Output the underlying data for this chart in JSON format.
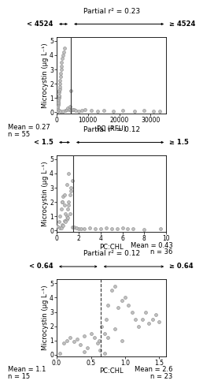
{
  "panel1": {
    "title": "Partial r² = 0.23",
    "xlabel": "PC (RFU)",
    "ylabel": "Microcystin (μg L⁻¹)",
    "xlim": [
      0,
      35000
    ],
    "ylim": [
      -0.1,
      5.3
    ],
    "xticks": [
      0,
      10000,
      20000,
      30000
    ],
    "xticklabels": [
      "0",
      "10000",
      "20000",
      "30000"
    ],
    "yticks": [
      0,
      1,
      2,
      3,
      4,
      5
    ],
    "cutoff": 4524,
    "cutoff_label_left": "< 4524",
    "cutoff_label_right": "≥ 4524",
    "mean_left": "Mean = 0.27",
    "n_left": "n = 55",
    "mean_right": null,
    "n_right": null,
    "line_style": "solid",
    "scatter_x": [
      100,
      150,
      200,
      250,
      300,
      350,
      400,
      450,
      500,
      550,
      600,
      650,
      700,
      750,
      800,
      850,
      900,
      950,
      1000,
      1100,
      1200,
      1300,
      1400,
      1500,
      1600,
      1800,
      2000,
      2200,
      2500,
      2800,
      3200,
      3600,
      4000,
      4200,
      4400,
      4524,
      5000,
      5500,
      6000,
      7000,
      8000,
      9000,
      11000,
      13000,
      15000,
      18000,
      21000,
      25000,
      28000,
      31000,
      33000,
      350,
      700,
      1200,
      2000
    ],
    "scatter_y": [
      0.05,
      0.1,
      0.15,
      0.2,
      0.3,
      0.4,
      0.5,
      0.6,
      0.7,
      0.8,
      0.9,
      1.0,
      1.1,
      1.2,
      1.4,
      1.5,
      1.6,
      1.8,
      2.0,
      2.2,
      2.5,
      2.7,
      3.0,
      3.2,
      3.5,
      3.8,
      4.0,
      4.2,
      4.5,
      0.1,
      0.2,
      0.3,
      0.2,
      0.4,
      1.5,
      0.1,
      0.15,
      0.2,
      0.1,
      0.05,
      0.1,
      0.2,
      0.1,
      0.05,
      0.1,
      0.05,
      0.1,
      0.05,
      0.1,
      0.05,
      0.05,
      0.05,
      0.1,
      0.05,
      0.05
    ]
  },
  "panel2": {
    "title": "Partial r² = 0.12",
    "xlabel": "PC:CHL",
    "ylabel": "Microcystin (μg L⁻¹)",
    "xlim": [
      0,
      10
    ],
    "ylim": [
      -0.1,
      5.3
    ],
    "xticks": [
      0,
      2,
      4,
      6,
      8,
      10
    ],
    "xticklabels": [
      "0",
      "2",
      "4",
      "6",
      "8",
      "10"
    ],
    "yticks": [
      0,
      1,
      2,
      3,
      4,
      5
    ],
    "cutoff": 1.5,
    "cutoff_label_left": "< 1.5",
    "cutoff_label_right": "≥ 1.5",
    "mean_left": null,
    "n_left": null,
    "mean_right": "Mean = 0.43",
    "n_right": "n = 36",
    "line_style": "solid",
    "scatter_x": [
      0.1,
      0.2,
      0.3,
      0.4,
      0.5,
      0.6,
      0.7,
      0.8,
      0.9,
      1.0,
      1.1,
      1.2,
      1.3,
      1.4,
      0.3,
      0.5,
      0.7,
      0.9,
      1.1,
      1.3,
      0.4,
      0.6,
      0.8,
      1.0,
      1.2,
      1.4,
      0.5,
      0.7,
      0.9,
      1.1,
      2.0,
      3.0,
      4.0,
      5.0,
      6.0,
      7.0,
      8.0,
      9.5,
      2.5,
      3.5,
      4.5,
      5.5,
      6.5,
      1.6,
      1.8,
      2.2
    ],
    "scatter_y": [
      0.3,
      0.6,
      1.0,
      1.5,
      2.0,
      2.4,
      1.8,
      1.2,
      0.8,
      1.5,
      2.0,
      2.5,
      3.0,
      3.5,
      0.2,
      0.4,
      0.7,
      1.0,
      1.8,
      2.8,
      0.15,
      0.35,
      0.6,
      0.9,
      1.2,
      0.25,
      2.0,
      2.5,
      3.2,
      4.0,
      0.1,
      0.15,
      0.1,
      0.1,
      0.15,
      0.1,
      0.05,
      0.1,
      0.1,
      0.1,
      0.15,
      0.1,
      0.1,
      0.25,
      0.2,
      0.1
    ]
  },
  "panel3": {
    "title": "Partial r² = 0.12",
    "xlabel": "PC:CHL",
    "ylabel": "Microcystin (μg L⁻¹)",
    "xlim": [
      0,
      1.6
    ],
    "ylim": [
      -0.1,
      5.3
    ],
    "xticks": [
      0.0,
      0.5,
      1.0,
      1.5
    ],
    "xticklabels": [
      "0.0",
      "0.5",
      "1.0",
      "1.5"
    ],
    "yticks": [
      0,
      1,
      2,
      3,
      4,
      5
    ],
    "cutoff": 0.64,
    "cutoff_label_left": "< 0.64",
    "cutoff_label_right": "≥ 0.64",
    "mean_left": "Mean = 1.1",
    "n_left": "n = 15",
    "mean_right": "Mean = 2.6",
    "n_right": "n = 23",
    "line_style": "dashed",
    "scatter_x": [
      0.05,
      0.1,
      0.15,
      0.2,
      0.25,
      0.3,
      0.35,
      0.4,
      0.45,
      0.5,
      0.55,
      0.6,
      0.62,
      0.63,
      0.4,
      0.7,
      0.72,
      0.75,
      0.8,
      0.85,
      0.9,
      0.95,
      1.0,
      1.05,
      1.1,
      1.15,
      1.2,
      1.25,
      1.3,
      1.35,
      1.4,
      1.45,
      1.5,
      0.65,
      0.7,
      0.75,
      0.85,
      0.95
    ],
    "scatter_y": [
      0.1,
      0.8,
      1.0,
      1.2,
      0.9,
      1.1,
      0.7,
      1.3,
      0.5,
      1.5,
      1.2,
      0.8,
      1.0,
      0.3,
      0.2,
      0.1,
      2.5,
      3.5,
      4.5,
      4.8,
      3.3,
      3.8,
      4.0,
      3.5,
      3.0,
      2.5,
      2.0,
      2.5,
      3.0,
      2.2,
      2.5,
      2.8,
      2.3,
      2.0,
      1.5,
      1.2,
      1.8,
      1.0
    ]
  },
  "scatter_color": "#c0c0c0",
  "scatter_edgecolor": "#888888",
  "scatter_size": 8,
  "line_color": "#333333",
  "arrow_color": "#000000",
  "bg_color": "#ffffff",
  "fontsize_title": 6.5,
  "fontsize_label": 6,
  "fontsize_tick": 5.5,
  "fontsize_annot": 6
}
